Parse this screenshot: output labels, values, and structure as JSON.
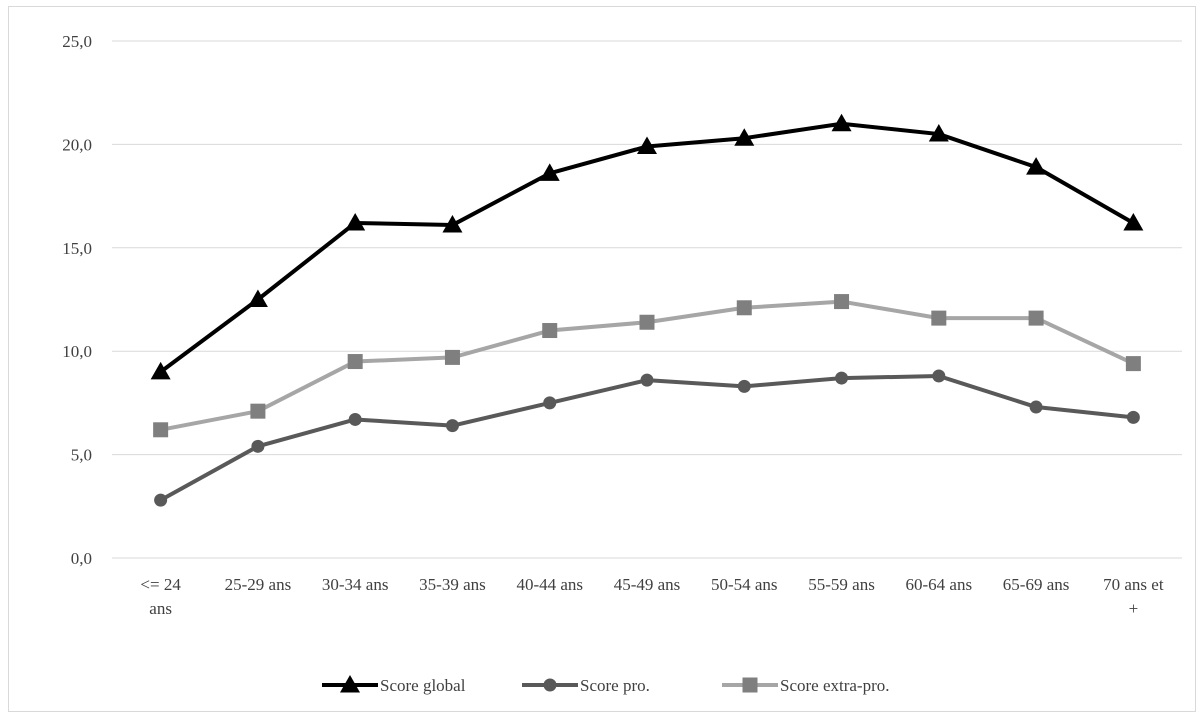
{
  "chart_data": {
    "type": "line",
    "categories": [
      [
        "<= 24",
        "ans"
      ],
      [
        "25-29 ans"
      ],
      [
        "30-34 ans"
      ],
      [
        "35-39 ans"
      ],
      [
        "40-44 ans"
      ],
      [
        "45-49 ans"
      ],
      [
        "50-54 ans"
      ],
      [
        "55-59 ans"
      ],
      [
        "60-64 ans"
      ],
      [
        "65-69 ans"
      ],
      [
        "70 ans et",
        "+"
      ]
    ],
    "yticks": [
      "0,0",
      "5,0",
      "10,0",
      "15,0",
      "20,0",
      "25,0"
    ],
    "ylim": [
      0,
      25
    ],
    "grid": true,
    "legend_position": "bottom",
    "series": [
      {
        "name": "Score global",
        "color": "#000000",
        "marker": "triangle",
        "values": [
          9.0,
          12.5,
          16.2,
          16.1,
          18.6,
          19.9,
          20.3,
          21.0,
          20.5,
          18.9,
          16.2
        ]
      },
      {
        "name": "Score pro.",
        "color": "#595959",
        "marker": "circle",
        "values": [
          2.8,
          5.4,
          6.7,
          6.4,
          7.5,
          8.6,
          8.3,
          8.7,
          8.8,
          7.3,
          6.8
        ]
      },
      {
        "name": "Score extra-pro.",
        "color": "#a6a6a6",
        "marker_color": "#7f7f7f",
        "marker": "square",
        "values": [
          6.2,
          7.1,
          9.5,
          9.7,
          11.0,
          11.4,
          12.1,
          12.4,
          11.6,
          11.6,
          9.4
        ]
      }
    ]
  }
}
